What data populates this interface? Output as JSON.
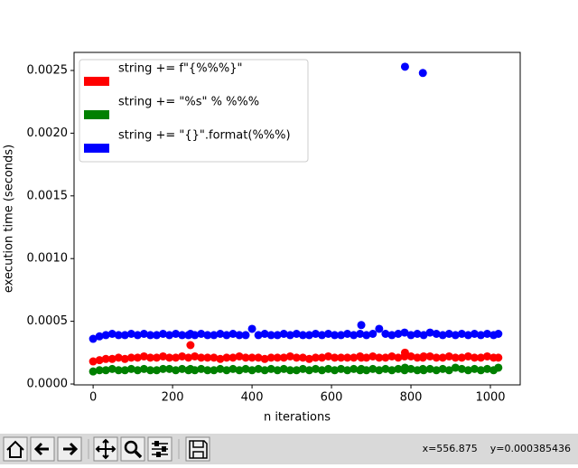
{
  "chart_data": {
    "type": "scatter",
    "xlabel": "n iterations",
    "ylabel": "execution time (seconds)",
    "xlim": [
      -48,
      1075
    ],
    "ylim": [
      -7e-06,
      0.002644
    ],
    "xticks": [
      0,
      200,
      400,
      600,
      800,
      1000
    ],
    "yticks": [
      {
        "value": 0,
        "label": "0.0000"
      },
      {
        "value": 0.0005,
        "label": "0.0005"
      },
      {
        "value": 0.001,
        "label": "0.0010"
      },
      {
        "value": 0.0015,
        "label": "0.0015"
      },
      {
        "value": 0.002,
        "label": "0.0020"
      },
      {
        "value": 0.0025,
        "label": "0.0025"
      }
    ],
    "legend": "upper left",
    "x": [
      0,
      16,
      32,
      48,
      64,
      80,
      96,
      112,
      128,
      144,
      160,
      176,
      192,
      208,
      224,
      240,
      245,
      256,
      272,
      288,
      304,
      320,
      336,
      352,
      368,
      384,
      400,
      416,
      432,
      448,
      464,
      480,
      496,
      512,
      528,
      544,
      560,
      576,
      592,
      608,
      624,
      640,
      656,
      672,
      675,
      688,
      704,
      720,
      736,
      752,
      768,
      784,
      785,
      800,
      816,
      830,
      832,
      848,
      864,
      880,
      896,
      912,
      928,
      944,
      960,
      976,
      992,
      1008,
      1020
    ],
    "series": [
      {
        "name": "string += f\"{%%%}\"",
        "color": "#ff0000",
        "values": [
          0.00018,
          0.00019,
          0.0002,
          0.0002,
          0.00021,
          0.0002,
          0.00021,
          0.00021,
          0.00022,
          0.00021,
          0.00021,
          0.00022,
          0.00021,
          0.00021,
          0.00022,
          0.00021,
          0.00031,
          0.00022,
          0.00021,
          0.00021,
          0.00021,
          0.0002,
          0.00021,
          0.00021,
          0.00022,
          0.00021,
          0.00021,
          0.00021,
          0.0002,
          0.00021,
          0.00021,
          0.00021,
          0.00022,
          0.00021,
          0.00021,
          0.0002,
          0.00021,
          0.00021,
          0.00022,
          0.00021,
          0.00021,
          0.00021,
          0.00021,
          0.00022,
          0.00021,
          0.00021,
          0.00022,
          0.00021,
          0.00021,
          0.00022,
          0.00021,
          0.00022,
          0.00025,
          0.00022,
          0.00021,
          0.00021,
          0.00022,
          0.00022,
          0.00021,
          0.00021,
          0.00022,
          0.00021,
          0.00021,
          0.00022,
          0.00021,
          0.00021,
          0.00022,
          0.00021,
          0.00021
        ]
      },
      {
        "name": "string += \"%s\" % %%%",
        "color": "#008000",
        "values": [
          0.0001,
          0.00011,
          0.00011,
          0.00012,
          0.00011,
          0.00011,
          0.00012,
          0.00011,
          0.00012,
          0.00011,
          0.00011,
          0.00012,
          0.00012,
          0.00011,
          0.00012,
          0.00011,
          0.00012,
          0.00011,
          0.00012,
          0.00011,
          0.00011,
          0.00012,
          0.00011,
          0.00012,
          0.00011,
          0.00012,
          0.00011,
          0.00012,
          0.00011,
          0.00012,
          0.00011,
          0.00012,
          0.00011,
          0.00011,
          0.00012,
          0.00011,
          0.00012,
          0.00011,
          0.00012,
          0.00011,
          0.00012,
          0.00011,
          0.00012,
          0.00011,
          0.00012,
          0.00011,
          0.00012,
          0.00011,
          0.00012,
          0.00011,
          0.00012,
          0.00011,
          0.00013,
          0.00012,
          0.00011,
          0.00012,
          0.00011,
          0.00012,
          0.00011,
          0.00012,
          0.00011,
          0.00013,
          0.00012,
          0.00011,
          0.00012,
          0.00011,
          0.00012,
          0.00011,
          0.00013
        ]
      },
      {
        "name": "string += \"{}\".format(%%%)",
        "color": "#0000ff",
        "values": [
          0.00036,
          0.00038,
          0.00039,
          0.0004,
          0.00039,
          0.00039,
          0.0004,
          0.00039,
          0.0004,
          0.00039,
          0.00039,
          0.0004,
          0.00039,
          0.0004,
          0.00039,
          0.00039,
          0.0004,
          0.00039,
          0.0004,
          0.00039,
          0.00039,
          0.0004,
          0.00039,
          0.0004,
          0.00039,
          0.00039,
          0.00044,
          0.00039,
          0.0004,
          0.00039,
          0.00039,
          0.0004,
          0.00039,
          0.0004,
          0.00039,
          0.00039,
          0.0004,
          0.00039,
          0.0004,
          0.00039,
          0.00039,
          0.0004,
          0.00039,
          0.0004,
          0.00047,
          0.00039,
          0.0004,
          0.00044,
          0.0004,
          0.00039,
          0.0004,
          0.00041,
          0.00253,
          0.00039,
          0.0004,
          0.00248,
          0.00039,
          0.00041,
          0.0004,
          0.00039,
          0.0004,
          0.00039,
          0.0004,
          0.00039,
          0.0004,
          0.00039,
          0.0004,
          0.00039,
          0.0004
        ]
      }
    ]
  },
  "toolbar": {
    "status": "x=556.875    y=0.000385436"
  }
}
